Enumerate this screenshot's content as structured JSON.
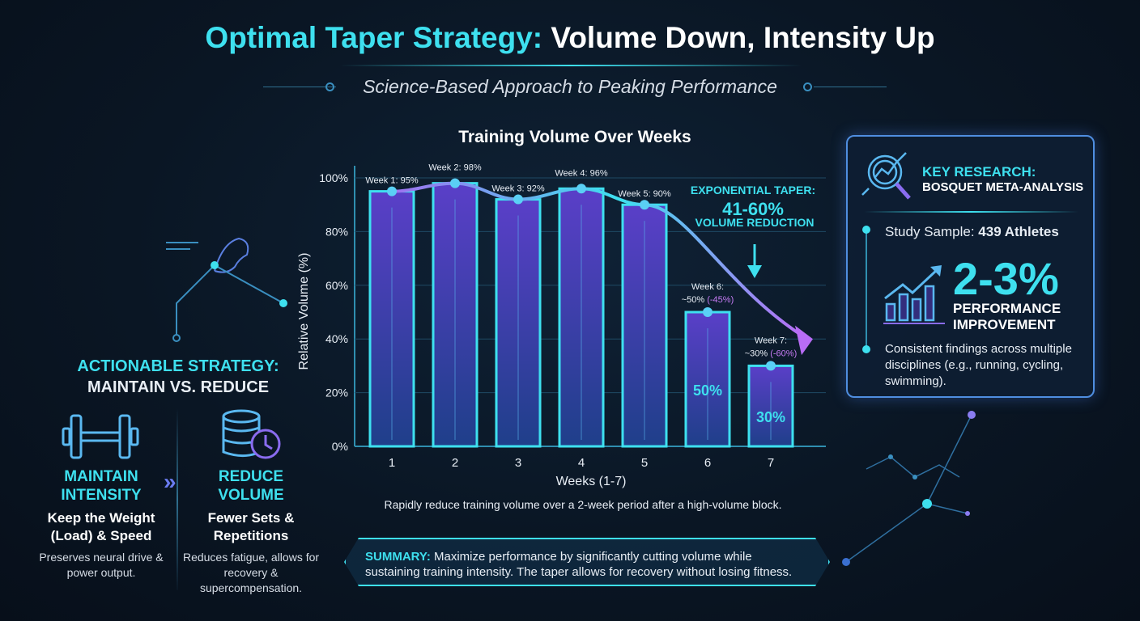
{
  "header": {
    "title_accent": "Optimal Taper Strategy:",
    "title_rest": " Volume Down, Intensity Up",
    "subtitle": "Science-Based Approach to Peaking Performance"
  },
  "chart_data": {
    "type": "bar",
    "title": "Training Volume Over Weeks",
    "xlabel": "Weeks (1-7)",
    "ylabel": "Relative Volume (%)",
    "ylim": [
      0,
      100
    ],
    "yticks": [
      "0%",
      "20%",
      "40%",
      "60%",
      "80%",
      "100%"
    ],
    "categories": [
      "1",
      "2",
      "3",
      "4",
      "5",
      "6",
      "7"
    ],
    "values": [
      95,
      98,
      92,
      96,
      90,
      50,
      30
    ],
    "labels": [
      "Week 1: 95%",
      "Week 2: 98%",
      "Week 3: 92%",
      "Week 4: 96%",
      "Week 5: 90%",
      "Week 6:|~50%|(-45%)",
      "Week 7:|~30%|(-60%)"
    ],
    "inbar_labels": {
      "5": "50%",
      "6": "30%"
    },
    "annotation": {
      "line1": "EXPONENTIAL TAPER:",
      "line2": "41-60%",
      "line3": "VOLUME REDUCTION"
    },
    "grid": true,
    "colors": {
      "bar_top": "#5a3fc8",
      "bar_bottom": "#1f3f8a",
      "outline": "#3ee0ef",
      "trend": "#3ee0ef",
      "trend_end": "#b86cf5"
    }
  },
  "caption": "Rapidly reduce training volume over a 2-week period after a high-volume block.",
  "strategy": {
    "title_accent": "ACTIONABLE STRATEGY:",
    "title_rest": "MAINTAIN VS. REDUCE",
    "maintain": {
      "h1": "MAINTAIN",
      "h2": "INTENSITY",
      "sub": "Keep the Weight (Load) & Speed",
      "desc": "Preserves neural drive & power output.",
      "icon": "dumbbell-icon"
    },
    "reduce": {
      "h1": "REDUCE",
      "h2": "VOLUME",
      "sub": "Fewer Sets & Repetitions",
      "desc": "Reduces fatigue, allows for recovery & supercompensation.",
      "icon": "database-clock-icon"
    }
  },
  "research": {
    "title": "KEY RESEARCH:",
    "subtitle": "BOSQUET META-ANALYSIS",
    "sample_label": "Study Sample: ",
    "sample_value": "439 Athletes",
    "big": "2-3%",
    "perf1": "PERFORMANCE",
    "perf2": "IMPROVEMENT",
    "findings": "Consistent findings across multiple disciplines (e.g., running, cycling, swimming)."
  },
  "summary": {
    "label": "SUMMARY:",
    "text": " Maximize performance by significantly cutting volume while sustaining training intensity. The taper allows for recovery without losing fitness."
  }
}
